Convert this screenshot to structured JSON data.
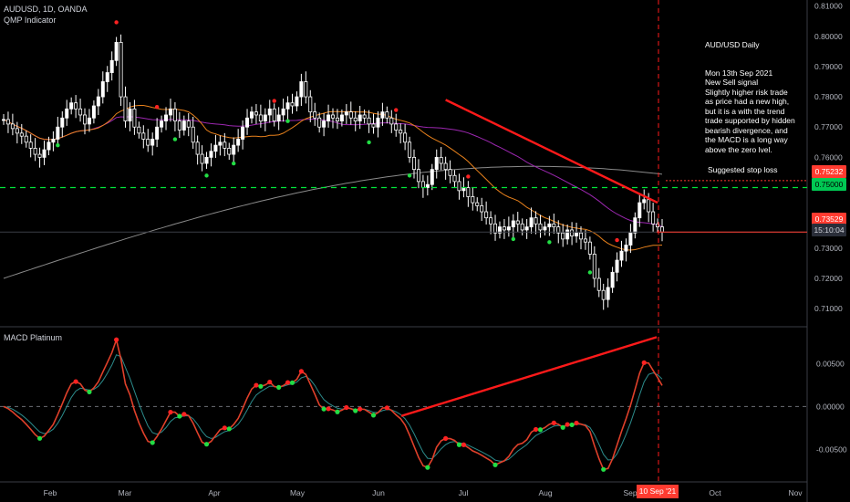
{
  "header": {
    "symbol_line": "AUDUSD, 1D, OANDA",
    "indicator": "QMP Indicator"
  },
  "macd_panel": {
    "title": "MACD Platinum"
  },
  "annotation": {
    "title": "AUD/USD Daily",
    "body": "Mon 13th Sep 2021\nNew Sell signal\nSlightly higher risk trade\nas price had a new high,\nbut it is a with the trend\ntrade supported by hidden\nbearish divergence, and\nthe MACD is a long way\nabove the zero lvel.",
    "stop_label": "Suggested stop loss"
  },
  "price_tags": {
    "stop": "0.75232",
    "level": "0.75000",
    "last": "0.73529",
    "countdown": "15:10:04"
  },
  "date_badge": "10 Sep '21",
  "colors": {
    "background": "#000000",
    "up_candle": "#ffffff",
    "down_candle": "#ffffff",
    "ma_fast": "#e8811c",
    "ma_mid": "#9c27b0",
    "ma_slow": "#8a8a8a",
    "trendline": "#ff1a1a",
    "green_level": "#00e53b",
    "stop_line": "#ff3b30",
    "macd_line": "#e0402a",
    "signal_line": "#2c8c8c",
    "buy_dot": "#22dd44",
    "sell_dot": "#ff2222"
  },
  "chart_data": [
    {
      "type": "candlestick",
      "title": "AUDUSD, 1D, OANDA",
      "y_ticks": [
        "0.81000",
        "0.80000",
        "0.79000",
        "0.78000",
        "0.77000",
        "0.76000",
        "0.75000",
        "0.74000",
        "0.73000",
        "0.72000",
        "0.71000"
      ],
      "x_ticks": [
        "Feb",
        "Mar",
        "Apr",
        "May",
        "Jun",
        "Jul",
        "Aug",
        "Sep",
        "Oct",
        "Nov"
      ],
      "ylim": [
        0.704,
        0.812
      ],
      "close": [
        0.7725,
        0.771,
        0.7695,
        0.768,
        0.767,
        0.765,
        0.763,
        0.761,
        0.76,
        0.7625,
        0.765,
        0.766,
        0.77,
        0.773,
        0.776,
        0.778,
        0.776,
        0.774,
        0.771,
        0.773,
        0.777,
        0.78,
        0.785,
        0.788,
        0.792,
        0.798,
        0.78,
        0.772,
        0.776,
        0.77,
        0.768,
        0.766,
        0.764,
        0.766,
        0.77,
        0.772,
        0.774,
        0.776,
        0.772,
        0.769,
        0.772,
        0.77,
        0.765,
        0.761,
        0.758,
        0.76,
        0.762,
        0.764,
        0.765,
        0.763,
        0.761,
        0.764,
        0.766,
        0.77,
        0.773,
        0.775,
        0.774,
        0.772,
        0.774,
        0.776,
        0.772,
        0.774,
        0.776,
        0.778,
        0.777,
        0.78,
        0.785,
        0.78,
        0.775,
        0.773,
        0.77,
        0.772,
        0.774,
        0.773,
        0.772,
        0.774,
        0.775,
        0.773,
        0.772,
        0.774,
        0.773,
        0.771,
        0.77,
        0.773,
        0.775,
        0.773,
        0.771,
        0.769,
        0.768,
        0.765,
        0.76,
        0.756,
        0.752,
        0.75,
        0.751,
        0.756,
        0.76,
        0.758,
        0.756,
        0.754,
        0.752,
        0.749,
        0.75,
        0.747,
        0.745,
        0.744,
        0.742,
        0.74,
        0.738,
        0.735,
        0.737,
        0.736,
        0.737,
        0.739,
        0.738,
        0.736,
        0.737,
        0.74,
        0.738,
        0.736,
        0.737,
        0.738,
        0.737,
        0.735,
        0.733,
        0.736,
        0.734,
        0.735,
        0.733,
        0.732,
        0.728,
        0.72,
        0.716,
        0.713,
        0.717,
        0.722,
        0.726,
        0.729,
        0.731,
        0.735,
        0.74,
        0.745,
        0.746,
        0.742,
        0.738,
        0.737,
        0.7353
      ],
      "moving_averages": [
        "orange",
        "purple",
        "gray"
      ],
      "horizontal_levels": [
        {
          "value": 0.75232,
          "label": "Suggested stop loss"
        },
        {
          "value": 0.75
        },
        {
          "value": 0.73529
        }
      ],
      "vertical_marker": "10 Sep '21"
    },
    {
      "type": "line",
      "title": "MACD Platinum",
      "y_ticks": [
        "0.00500",
        "0.00000",
        "-0.00500"
      ],
      "ylim": [
        -0.0088,
        0.0091
      ]
    }
  ]
}
